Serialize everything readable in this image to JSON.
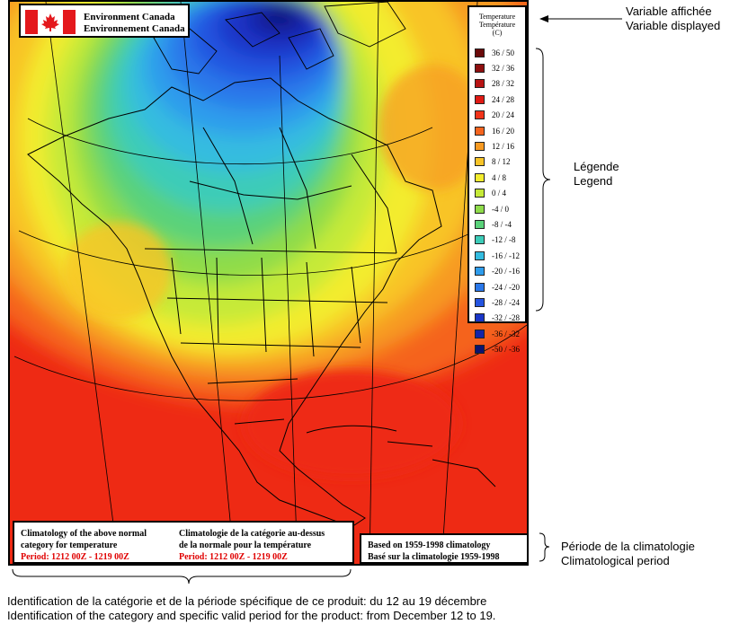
{
  "brand": {
    "line1": "Environment Canada",
    "line2": "Environnement Canada",
    "flag_red": "#e4181c"
  },
  "legend": {
    "title_en": "Temperature",
    "title_fr": "Température",
    "unit": "(C)",
    "items": [
      {
        "label": "36 / 50",
        "color": "#6a0a0a"
      },
      {
        "label": "32 / 36",
        "color": "#8e0f0f"
      },
      {
        "label": "28 / 32",
        "color": "#b81414"
      },
      {
        "label": "24 / 28",
        "color": "#e01a14"
      },
      {
        "label": "20 / 24",
        "color": "#f2341a"
      },
      {
        "label": "16 / 20",
        "color": "#f5641e"
      },
      {
        "label": "12 / 16",
        "color": "#f79a22"
      },
      {
        "label": "8 / 12",
        "color": "#f8c428"
      },
      {
        "label": "4 / 8",
        "color": "#f3ec2e"
      },
      {
        "label": "0 / 4",
        "color": "#c6ea38"
      },
      {
        "label": "-4 / 0",
        "color": "#8fdc4a"
      },
      {
        "label": "-8 / -4",
        "color": "#5ad27a"
      },
      {
        "label": "-12 / -8",
        "color": "#3cccb8"
      },
      {
        "label": "-16 / -12",
        "color": "#34bce0"
      },
      {
        "label": "-20 / -16",
        "color": "#2e9cec"
      },
      {
        "label": "-24 / -20",
        "color": "#2a78ea"
      },
      {
        "label": "-28 / -24",
        "color": "#2454e0"
      },
      {
        "label": "-32 / -28",
        "color": "#1a36c8"
      },
      {
        "label": "-36 / -32",
        "color": "#1424a8"
      },
      {
        "label": "-50 / -36",
        "color": "#0c1470"
      }
    ]
  },
  "category_box": {
    "en_line1": "Climatology of the above normal",
    "en_line2": "category for temperature",
    "en_period": "Period:  1212 00Z - 1219 00Z",
    "fr_line1": "Climatologie de la catégorie au-dessus",
    "fr_line2": "de la normale pour la température",
    "fr_period": "Period:  1212 00Z - 1219 00Z"
  },
  "climatology_box": {
    "line1": "Based on 1959-1998 climatology",
    "line2": "Basé sur la climatologie 1959-1998"
  },
  "annotations": {
    "variable_fr": "Variable affichée",
    "variable_en": "Variable displayed",
    "legend_fr": "Légende",
    "legend_en": "Legend",
    "period_fr": "Période de la climatologie",
    "period_en": "Climatological period"
  },
  "footer": {
    "line_fr": "Identification de la catégorie et de la période spécifique de ce produit: du 12 au 19 décembre",
    "line_en": "Identification of the category and specific valid period for the product: from December 12 to 19."
  }
}
